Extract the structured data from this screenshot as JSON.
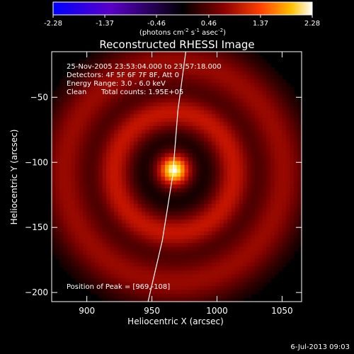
{
  "colorbar": {
    "ticks": [
      "-2.28",
      "-1.37",
      "-0.46",
      "0.46",
      "1.37",
      "2.28"
    ],
    "tick_values": [
      -2.28,
      -1.37,
      -0.46,
      0.46,
      1.37,
      2.28
    ],
    "range": [
      -2.28,
      2.28
    ],
    "unit_main": "(photons cm",
    "unit_sup1": "-2",
    "unit_mid1": " s",
    "unit_sup2": "-1",
    "unit_mid2": " asec",
    "unit_sup3": "-2",
    "unit_end": ")"
  },
  "chart_data": {
    "type": "heatmap",
    "title": "Reconstructed RHESSI Image",
    "xlabel": "Heliocentric X (arcsec)",
    "ylabel": "Heliocentric Y (arcsec)",
    "xlim": [
      873,
      1065
    ],
    "ylim": [
      -207,
      -15
    ],
    "x_ticks": [
      900,
      950,
      1000,
      1050
    ],
    "y_ticks": [
      -50,
      -100,
      -150,
      -200
    ],
    "x_tick_labels": [
      "900",
      "950",
      "1000",
      "1050"
    ],
    "y_tick_labels": [
      "−50",
      "−100",
      "−150",
      "−200"
    ],
    "colormap": "black-red-yellow-white (negative: blue-purple)",
    "peak_x": 969,
    "peak_y": -108,
    "limb_points": [
      [
        976,
        -15
      ],
      [
        970,
        -60
      ],
      [
        966,
        -110
      ],
      [
        958,
        -160
      ],
      [
        947,
        -207
      ]
    ],
    "components": [
      {
        "kind": "core",
        "cx": 967,
        "cy": -106,
        "sigma": 8,
        "amp": 2.28
      },
      {
        "kind": "ring",
        "cx": 967,
        "cy": -108,
        "radius": 46,
        "width": 9,
        "amp": 0.9
      },
      {
        "kind": "ring",
        "cx": 967,
        "cy": -108,
        "radius": 84,
        "width": 12,
        "amp": 0.65
      }
    ],
    "annotations": {
      "time_range": "25-Nov-2005 23:53:04.000 to 23:57:18.000",
      "detectors": "Detectors: 4F 5F 6F 7F 8F, Att 0",
      "energy": "Energy Range: 3.0 - 6.0 keV",
      "method": "Clean",
      "counts": "Total counts: 1.95E+05",
      "peak": "Position of Peak = [969,-108]"
    }
  },
  "footer": {
    "date": "6-Jul-2013 09:03"
  }
}
